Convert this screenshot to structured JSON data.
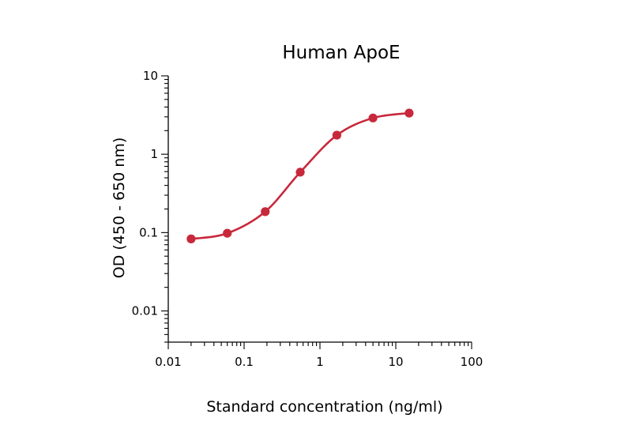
{
  "chart_data": {
    "type": "line",
    "title": "Human ApoE",
    "xlabel": "Standard concentration (ng/ml)",
    "ylabel": "OD (450 - 650 nm)",
    "x_scale": "log",
    "y_scale": "log",
    "xlim": [
      0.01,
      100
    ],
    "ylim": [
      0.004,
      10
    ],
    "x_ticks": [
      {
        "value": 0.01,
        "label": "0.01"
      },
      {
        "value": 0.1,
        "label": "0.1"
      },
      {
        "value": 1,
        "label": "1"
      },
      {
        "value": 10,
        "label": "10"
      },
      {
        "value": 100,
        "label": "100"
      }
    ],
    "y_ticks": [
      {
        "value": 0.01,
        "label": "0.01"
      },
      {
        "value": 0.1,
        "label": "0.1"
      },
      {
        "value": 1,
        "label": "1"
      },
      {
        "value": 10,
        "label": "10"
      }
    ],
    "grid": false,
    "legend": "none",
    "series": [
      {
        "color": "#c8283c",
        "points": [
          {
            "x": 0.02,
            "y": 0.083
          },
          {
            "x": 0.06,
            "y": 0.098
          },
          {
            "x": 0.19,
            "y": 0.185
          },
          {
            "x": 0.55,
            "y": 0.59
          },
          {
            "x": 1.67,
            "y": 1.75
          },
          {
            "x": 5.0,
            "y": 2.9
          },
          {
            "x": 15.0,
            "y": 3.35
          }
        ]
      }
    ]
  }
}
